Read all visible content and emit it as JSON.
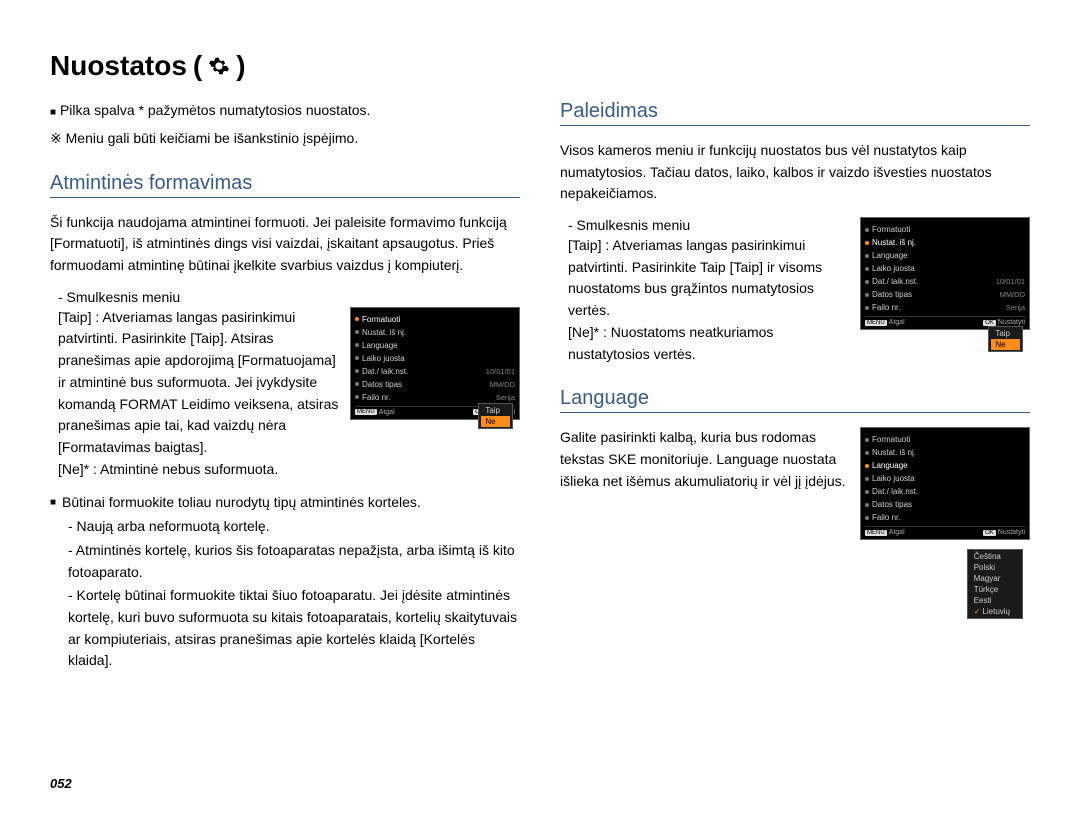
{
  "page": {
    "title": "Nuostatos",
    "number": "052"
  },
  "notes": {
    "grey_default": "Pilka spalva * pažymėtos numatytosios nuostatos.",
    "menu_change": "Meniu gali būti keičiami be išankstinio įspėjimo.",
    "grey_prefix": "■",
    "menu_prefix": "※"
  },
  "left": {
    "format": {
      "heading": "Atmintinės formavimas",
      "intro": "Ši funkcija naudojama atmintinei formuoti. Jei paleisite formavimo funkciją [Formatuoti], iš atmintinės dings visi vaizdai, įskaitant apsaugotus. Prieš formuodami atmintinę būtinai įkelkite svarbius vaizdus į kompiuterį.",
      "submenu_label": "- Smulkesnis meniu",
      "taip": "[Taip] : Atveriamas langas pasirinkimui patvirtinti. Pasirinkite [Taip]. Atsiras pranešimas apie apdorojimą [Formatuojama] ir atmintinė bus suformuota. Jei įvykdysite komandą FORMAT Leidimo veiksena, atsiras pranešimas apie tai, kad vaizdų nėra [Formatavimas baigtas].",
      "ne": "[Ne]* : Atmintinė nebus suformuota.",
      "must_lead": "Būtinai formuokite toliau nurodytų tipų atmintinės korteles.",
      "b1": "- Naują arba neformuotą kortelę.",
      "b2": "- Atmintinės kortelę, kurios šis fotoaparatas nepažįsta, arba išimtą iš kito fotoaparato.",
      "b3": "- Kortelę būtinai formuokite tiktai šiuo fotoaparatu. Jei įdėsite atmintinės kortelę, kuri buvo suformuota su kitais fotoaparatais, kortelių skaitytuvais ar kompiuteriais, atsiras pranešimas apie kortelės klaidą [Kortelės klaida]."
    }
  },
  "right": {
    "reset": {
      "heading": "Paleidimas",
      "intro": "Visos kameros meniu ir funkcijų nuostatos bus vėl nustatytos kaip numatytosios. Tačiau datos, laiko, kalbos ir vaizdo išvesties nuostatos nepakeičiamos.",
      "submenu_label": "- Smulkesnis meniu",
      "taip": "[Taip] : Atveriamas langas pasirinkimui patvirtinti. Pasirinkite Taip [Taip] ir visoms nuostatoms bus grąžintos numatytosios vertės.",
      "ne": "[Ne]* : Nuostatoms neatkuriamos nustatytosios vertės."
    },
    "language": {
      "heading": "Language",
      "body": "Galite pasirinkti kalbą, kuria bus rodomas tekstas SKE monitoriuje. Language nuostata išlieka net išėmus akumuliatorių ir vėl jį įdėjus."
    }
  },
  "lcd_format": {
    "items": [
      {
        "label": "Formatuoti",
        "val": "",
        "hl": true
      },
      {
        "label": "Nustat. iš nj.",
        "val": ""
      },
      {
        "label": "Language",
        "val": ""
      },
      {
        "label": "Laiko juosta",
        "val": ""
      },
      {
        "label": "Dat./ laik.nst.",
        "val": "10/01/01"
      },
      {
        "label": "Datos tipas",
        "val": "MM/DD"
      },
      {
        "label": "Failo nr.",
        "val": "Serija"
      }
    ],
    "popup": [
      "Taip",
      "Ne"
    ],
    "popup_selected": 1,
    "footer_left": "Atgal",
    "footer_right": "Nustatyti",
    "btn_left": "MENU",
    "btn_right": "OK"
  },
  "lcd_reset": {
    "items": [
      {
        "label": "Formatuoti",
        "val": ""
      },
      {
        "label": "Nustat. iš nj.",
        "val": "",
        "hl": true
      },
      {
        "label": "Language",
        "val": ""
      },
      {
        "label": "Laiko juosta",
        "val": ""
      },
      {
        "label": "Dat./ laik.nst.",
        "val": "10/01/01"
      },
      {
        "label": "Datos tipas",
        "val": "MM/DD"
      },
      {
        "label": "Failo nr.",
        "val": "Serija"
      }
    ],
    "popup": [
      "Taip",
      "Ne"
    ],
    "popup_selected": 1,
    "footer_left": "Atgal",
    "footer_right": "Nustatyti",
    "btn_left": "MENU",
    "btn_right": "OK"
  },
  "lcd_lang": {
    "items": [
      {
        "label": "Formatuoti",
        "val": ""
      },
      {
        "label": "Nustat. iš nj.",
        "val": ""
      },
      {
        "label": "Language",
        "val": "",
        "hl": true
      },
      {
        "label": "Laiko juosta",
        "val": ""
      },
      {
        "label": "Dat./ laik.nst.",
        "val": ""
      },
      {
        "label": "Datos tipas",
        "val": ""
      },
      {
        "label": "Failo nr.",
        "val": ""
      }
    ],
    "popup": [
      "Čeština",
      "Polski",
      "Magyar",
      "Türkçe",
      "Eesti",
      "Lietuvių"
    ],
    "popup_checked": 5,
    "footer_left": "Atgal",
    "footer_right": "Nustatyti",
    "btn_left": "MENU",
    "btn_right": "OK"
  },
  "colors": {
    "heading": "#3a5a8a",
    "text": "#000000",
    "lcd_bg": "#000000",
    "lcd_text": "#d0d0d0",
    "lcd_highlight": "#ff8c1a"
  }
}
